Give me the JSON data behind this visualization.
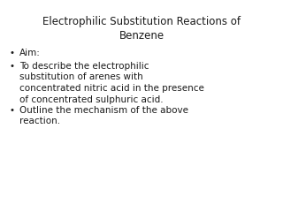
{
  "title": "Electrophilic Substitution Reactions of\nBenzene",
  "background_color": "#ffffff",
  "title_color": "#1a1a1a",
  "text_color": "#1a1a1a",
  "title_fontsize": 8.5,
  "body_fontsize": 7.5,
  "bullet_items": [
    "Aim:",
    "To describe the electrophilic\nsubstitution of arenes with\nconcentrated nitric acid in the presence\nof concentrated sulphuric acid.",
    "Outline the mechanism of the above\nreaction."
  ],
  "font_family": "Comic Sans MS",
  "bullet_char": "•"
}
